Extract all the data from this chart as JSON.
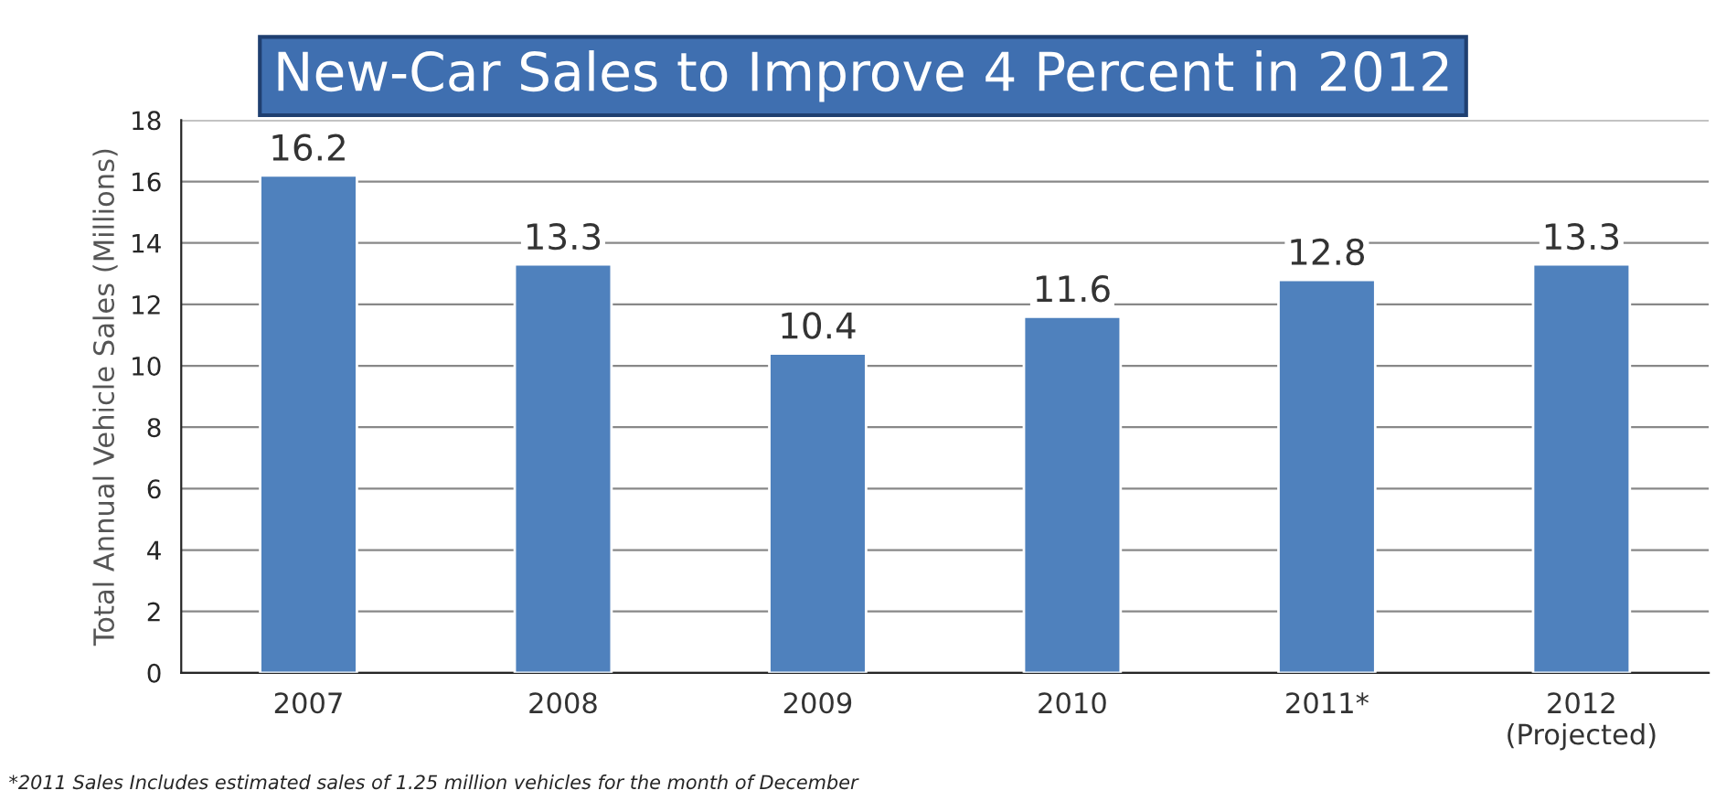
{
  "chart_data": {
    "type": "bar",
    "title": "New-Car Sales to Improve 4 Percent in 2012",
    "ylabel": "Total Annual Vehicle Sales (Millions)",
    "categories": [
      "2007",
      "2008",
      "2009",
      "2010",
      "2011*",
      "2012\n(Projected)"
    ],
    "values": [
      16.2,
      13.3,
      10.4,
      11.6,
      12.8,
      13.3
    ],
    "color": "#4f81bd",
    "ylim": [
      0,
      18
    ],
    "yticks": [
      0,
      2,
      4,
      6,
      8,
      10,
      12,
      14,
      16,
      18
    ],
    "grid": "y",
    "data_labels": true,
    "annotations": [
      "*2011 Sales Includes estimated sales of 1.25 million vehicles for the month of December"
    ]
  }
}
